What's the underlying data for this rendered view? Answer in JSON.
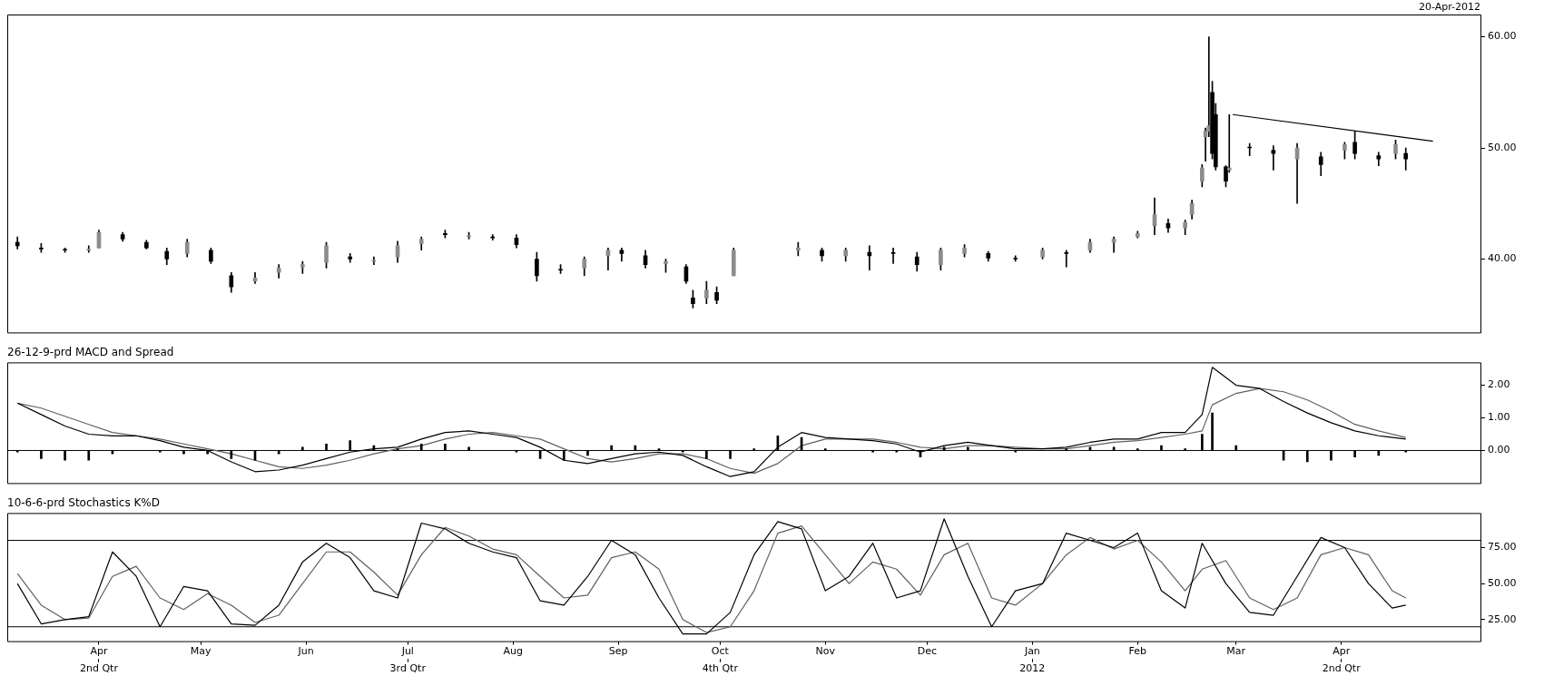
{
  "chart_data": [
    {
      "type": "candlestick",
      "color": "#000000",
      "colors": [
        "#000000",
        "#000000",
        "#000000",
        "#8c8c8c",
        "#8c8c8c",
        "#000000",
        "#000000",
        "#000000",
        "#8c8c8c",
        "#000000",
        "#000000",
        "#8c8c8c",
        "#8c8c8c",
        "#8c8c8c",
        "#8c8c8c",
        "#000000",
        "#8c8c8c",
        "#8c8c8c",
        "#8c8c8c",
        "#000000",
        "#8c8c8c",
        "#000000",
        "#000000",
        "#000000",
        "#000000",
        "#8c8c8c",
        "#8c8c8c",
        "#000000",
        "#000000",
        "#8c8c8c",
        "#000000",
        "#000000",
        "#8c8c8c",
        "#000000",
        "#8c8c8c",
        "#8c8c8c",
        "#000000",
        "#8c8c8c",
        "#000000",
        "#000000",
        "#000000",
        "#8c8c8c",
        "#8c8c8c",
        "#000000",
        "#000000",
        "#8c8c8c",
        "#000000",
        "#8c8c8c",
        "#8c8c8c",
        "#8c8c8c",
        "#8c8c8c",
        "#000000",
        "#8c8c8c",
        "#8c8c8c",
        "#8c8c8c",
        "#8c8c8c",
        "#8c8c8c",
        "#000000",
        "#000000",
        "#000000",
        "#8c8c8c",
        "#000000",
        "#000000",
        "#8c8c8c",
        "#000000",
        "#8c8c8c",
        "#000000",
        "#000000",
        "#8c8c8c",
        "#000000"
      ],
      "annotations": [
        "20-Apr-2012"
      ],
      "tick_labels": "y",
      "xlim": [
        "2011-03-05",
        "2012-05-12"
      ],
      "ylim": [
        33.4,
        62
      ],
      "yticks": [
        {
          "value": 40,
          "label": "40.00"
        },
        {
          "value": 50,
          "label": "50.00"
        },
        {
          "value": 60,
          "label": "60.00"
        }
      ],
      "x": [
        "2011-03-08",
        "2011-03-15",
        "2011-03-22",
        "2011-03-29",
        "2011-04-01",
        "2011-04-08",
        "2011-04-15",
        "2011-04-21",
        "2011-04-27",
        "2011-05-04",
        "2011-05-10",
        "2011-05-17",
        "2011-05-24",
        "2011-05-31",
        "2011-06-07",
        "2011-06-14",
        "2011-06-21",
        "2011-06-28",
        "2011-07-05",
        "2011-07-12",
        "2011-07-19",
        "2011-07-26",
        "2011-08-02",
        "2011-08-08",
        "2011-08-15",
        "2011-08-22",
        "2011-08-29",
        "2011-09-02",
        "2011-09-09",
        "2011-09-15",
        "2011-09-21",
        "2011-09-23",
        "2011-09-27",
        "2011-09-30",
        "2011-10-05",
        "2011-10-24",
        "2011-10-31",
        "2011-11-07",
        "2011-11-14",
        "2011-11-21",
        "2011-11-28",
        "2011-12-05",
        "2011-12-12",
        "2011-12-19",
        "2011-12-27",
        "2012-01-04",
        "2012-01-11",
        "2012-01-18",
        "2012-01-25",
        "2012-02-01",
        "2012-02-06",
        "2012-02-10",
        "2012-02-15",
        "2012-02-17",
        "2012-02-20",
        "2012-02-21",
        "2012-02-22",
        "2012-02-23",
        "2012-02-24",
        "2012-02-27",
        "2012-02-28",
        "2012-03-05",
        "2012-03-12",
        "2012-03-19",
        "2012-03-26",
        "2012-04-02",
        "2012-04-05",
        "2012-04-12",
        "2012-04-17",
        "2012-04-20"
      ],
      "ohlc": [
        [
          41.5,
          42.0,
          40.9,
          41.2
        ],
        [
          41.0,
          41.4,
          40.6,
          40.9
        ],
        [
          40.8,
          41.0,
          40.6,
          40.8
        ],
        [
          40.8,
          41.2,
          40.6,
          40.9
        ],
        [
          41.0,
          42.6,
          41.0,
          42.4
        ],
        [
          42.2,
          42.4,
          41.6,
          41.8
        ],
        [
          41.5,
          41.7,
          40.9,
          41.0
        ],
        [
          40.7,
          41.0,
          39.5,
          40.0
        ],
        [
          40.5,
          41.8,
          40.2,
          41.5
        ],
        [
          40.8,
          41.0,
          39.6,
          39.8
        ],
        [
          38.5,
          38.8,
          37.0,
          37.5
        ],
        [
          38.0,
          38.8,
          37.8,
          38.3
        ],
        [
          38.8,
          39.5,
          38.3,
          39.2
        ],
        [
          39.3,
          39.8,
          38.7,
          39.5
        ],
        [
          39.7,
          41.5,
          39.2,
          41.2
        ],
        [
          40.2,
          40.5,
          39.7,
          40.0
        ],
        [
          39.8,
          40.2,
          39.5,
          39.9
        ],
        [
          40.2,
          41.6,
          39.7,
          41.2
        ],
        [
          41.4,
          42.0,
          40.8,
          41.8
        ],
        [
          42.3,
          42.6,
          41.9,
          42.2
        ],
        [
          42.0,
          42.4,
          41.8,
          42.1
        ],
        [
          42.0,
          42.2,
          41.7,
          41.9
        ],
        [
          41.9,
          42.2,
          41.0,
          41.3
        ],
        [
          40.0,
          40.6,
          38.0,
          38.5
        ],
        [
          39.0,
          39.5,
          38.7,
          39.0
        ],
        [
          39.2,
          40.2,
          38.5,
          40.0
        ],
        [
          40.3,
          41.0,
          39.0,
          40.8
        ],
        [
          40.8,
          41.0,
          39.8,
          40.5
        ],
        [
          40.3,
          40.8,
          39.2,
          39.5
        ],
        [
          39.6,
          40.0,
          38.8,
          39.8
        ],
        [
          39.3,
          39.5,
          37.8,
          38.0
        ],
        [
          36.5,
          37.2,
          35.6,
          36.0
        ],
        [
          36.5,
          38.0,
          36.0,
          37.2
        ],
        [
          37.0,
          37.5,
          36.0,
          36.3
        ],
        [
          38.5,
          41.0,
          38.5,
          40.8
        ],
        [
          40.8,
          41.5,
          40.3,
          41.0
        ],
        [
          40.8,
          41.0,
          39.8,
          40.3
        ],
        [
          40.3,
          41.0,
          39.8,
          40.8
        ],
        [
          40.6,
          41.2,
          39.0,
          40.3
        ],
        [
          40.5,
          41.0,
          39.6,
          40.5
        ],
        [
          40.2,
          40.6,
          38.9,
          39.5
        ],
        [
          39.5,
          41.0,
          39.0,
          40.8
        ],
        [
          40.5,
          41.3,
          40.2,
          41.0
        ],
        [
          40.5,
          40.7,
          39.8,
          40.1
        ],
        [
          40.0,
          40.3,
          39.8,
          40.0
        ],
        [
          40.2,
          41.0,
          40.0,
          40.8
        ],
        [
          40.5,
          40.8,
          39.3,
          40.5
        ],
        [
          40.8,
          41.8,
          40.6,
          41.5
        ],
        [
          41.5,
          42.0,
          40.6,
          41.8
        ],
        [
          42.0,
          42.5,
          41.9,
          42.3
        ],
        [
          43.0,
          45.5,
          42.2,
          44.0
        ],
        [
          43.2,
          43.6,
          42.4,
          42.8
        ],
        [
          42.8,
          43.5,
          42.2,
          43.3
        ],
        [
          44.0,
          45.3,
          43.6,
          45.0
        ],
        [
          47.0,
          48.5,
          46.5,
          48.2
        ],
        [
          51.0,
          51.8,
          48.8,
          51.5
        ],
        [
          51.5,
          60.0,
          51.0,
          52.0
        ],
        [
          55.0,
          56.0,
          49.0,
          49.5
        ],
        [
          53.0,
          54.0,
          48.0,
          48.3
        ],
        [
          48.3,
          48.4,
          46.5,
          47.0
        ],
        [
          48.0,
          53.0,
          47.8,
          48.2
        ],
        [
          50.0,
          50.4,
          49.3,
          50.0
        ],
        [
          49.8,
          50.2,
          48.0,
          49.5
        ],
        [
          49.0,
          50.4,
          45.0,
          50.0
        ],
        [
          49.2,
          49.6,
          47.5,
          48.5
        ],
        [
          49.8,
          50.5,
          49.0,
          50.3
        ],
        [
          50.5,
          51.5,
          49.0,
          49.5
        ],
        [
          49.3,
          49.6,
          48.4,
          49.0
        ],
        [
          49.5,
          50.7,
          49.0,
          50.3
        ],
        [
          49.5,
          50.0,
          48.0,
          49.0
        ]
      ],
      "series": [
        {
          "type": "line",
          "color": "#000000",
          "x": [
            "2012-02-29",
            "2012-04-28"
          ],
          "values": [
            53.0,
            50.6
          ]
        }
      ]
    },
    {
      "type": "line",
      "title": "26-12-9-prd MACD and Spread",
      "tick_labels": "y",
      "xlim": [
        "2011-03-05",
        "2012-05-12"
      ],
      "ylim": [
        -1,
        2.7
      ],
      "yticks": [
        {
          "value": 0,
          "label": "0.00"
        },
        {
          "value": 1,
          "label": "1.00"
        },
        {
          "value": 2,
          "label": "2.00"
        }
      ],
      "ref_lines": [
        {
          "axis": "y",
          "value": 0,
          "color": "#000000"
        }
      ],
      "x": [
        "2011-03-08",
        "2011-03-15",
        "2011-03-22",
        "2011-03-29",
        "2011-04-05",
        "2011-04-12",
        "2011-04-19",
        "2011-04-26",
        "2011-05-03",
        "2011-05-10",
        "2011-05-17",
        "2011-05-24",
        "2011-05-31",
        "2011-06-07",
        "2011-06-14",
        "2011-06-21",
        "2011-06-28",
        "2011-07-05",
        "2011-07-12",
        "2011-07-19",
        "2011-07-26",
        "2011-08-02",
        "2011-08-09",
        "2011-08-16",
        "2011-08-23",
        "2011-08-30",
        "2011-09-06",
        "2011-09-13",
        "2011-09-20",
        "2011-09-27",
        "2011-10-04",
        "2011-10-11",
        "2011-10-18",
        "2011-10-25",
        "2011-11-01",
        "2011-11-08",
        "2011-11-15",
        "2011-11-22",
        "2011-11-29",
        "2011-12-06",
        "2011-12-13",
        "2011-12-20",
        "2011-12-27",
        "2012-01-04",
        "2012-01-11",
        "2012-01-18",
        "2012-01-25",
        "2012-02-01",
        "2012-02-08",
        "2012-02-15",
        "2012-02-20",
        "2012-02-23",
        "2012-03-01",
        "2012-03-08",
        "2012-03-15",
        "2012-03-22",
        "2012-03-29",
        "2012-04-05",
        "2012-04-12",
        "2012-04-20"
      ],
      "series": [
        {
          "color": "#000000",
          "values": [
            1.45,
            1.1,
            0.75,
            0.5,
            0.45,
            0.45,
            0.3,
            0.1,
            0.0,
            -0.35,
            -0.65,
            -0.6,
            -0.45,
            -0.25,
            -0.05,
            0.05,
            0.1,
            0.35,
            0.55,
            0.6,
            0.5,
            0.4,
            0.1,
            -0.3,
            -0.4,
            -0.25,
            -0.1,
            -0.05,
            -0.15,
            -0.5,
            -0.8,
            -0.65,
            0.1,
            0.55,
            0.4,
            0.35,
            0.3,
            0.2,
            -0.05,
            0.15,
            0.25,
            0.15,
            0.05,
            0.05,
            0.1,
            0.25,
            0.35,
            0.35,
            0.55,
            0.55,
            1.1,
            2.55,
            2.0,
            1.9,
            1.5,
            1.15,
            0.85,
            0.6,
            0.45,
            0.35
          ]
        },
        {
          "color": "#606060",
          "values": [
            1.45,
            1.3,
            1.05,
            0.8,
            0.55,
            0.45,
            0.35,
            0.2,
            0.05,
            -0.1,
            -0.3,
            -0.5,
            -0.55,
            -0.45,
            -0.3,
            -0.1,
            0.05,
            0.15,
            0.35,
            0.5,
            0.55,
            0.45,
            0.35,
            0.05,
            -0.25,
            -0.35,
            -0.25,
            -0.1,
            -0.1,
            -0.25,
            -0.55,
            -0.7,
            -0.4,
            0.15,
            0.35,
            0.35,
            0.35,
            0.25,
            0.1,
            0.05,
            0.15,
            0.15,
            0.1,
            0.05,
            0.05,
            0.15,
            0.25,
            0.3,
            0.4,
            0.5,
            0.6,
            1.4,
            1.75,
            1.9,
            1.8,
            1.55,
            1.2,
            0.8,
            0.6,
            0.4
          ]
        },
        {
          "type": "bar",
          "color": "#000000",
          "values": [
            -0.05,
            -0.25,
            -0.3,
            -0.3,
            -0.1,
            0.0,
            -0.05,
            -0.1,
            -0.1,
            -0.25,
            -0.3,
            -0.1,
            0.1,
            0.2,
            0.3,
            0.15,
            0.05,
            0.2,
            0.2,
            0.1,
            0.0,
            -0.05,
            -0.25,
            -0.3,
            -0.15,
            0.15,
            0.15,
            0.05,
            -0.05,
            -0.25,
            -0.25,
            0.05,
            0.45,
            0.4,
            0.05,
            0.0,
            -0.05,
            -0.05,
            -0.2,
            0.1,
            0.1,
            0.0,
            -0.05,
            0.0,
            0.05,
            0.1,
            0.1,
            0.05,
            0.15,
            0.05,
            0.5,
            1.15,
            0.15,
            0.0,
            -0.3,
            -0.35,
            -0.3,
            -0.2,
            -0.15,
            -0.05
          ]
        }
      ]
    },
    {
      "type": "line",
      "title": "10-6-6-prd Stochastics K%D",
      "xlim": [
        "2011-03-05",
        "2012-05-12"
      ],
      "ylim": [
        10,
        99
      ],
      "yticks": [
        {
          "value": 25,
          "label": "25.00"
        },
        {
          "value": 50,
          "label": "50.00"
        },
        {
          "value": 75,
          "label": "75.00"
        }
      ],
      "ref_lines": [
        {
          "axis": "y",
          "value": 80,
          "color": "#000000"
        },
        {
          "axis": "y",
          "value": 20,
          "color": "#000000"
        }
      ],
      "xticks": [
        {
          "value": "2011-04-01",
          "label": "Apr"
        },
        {
          "value": "2011-05-01",
          "label": "May"
        },
        {
          "value": "2011-06-01",
          "label": "Jun"
        },
        {
          "value": "2011-07-01",
          "label": "Jul"
        },
        {
          "value": "2011-08-01",
          "label": "Aug"
        },
        {
          "value": "2011-09-01",
          "label": "Sep"
        },
        {
          "value": "2011-10-01",
          "label": "Oct"
        },
        {
          "value": "2011-11-01",
          "label": "Nov"
        },
        {
          "value": "2011-12-01",
          "label": "Dec"
        },
        {
          "value": "2012-01-01",
          "label": "Jan"
        },
        {
          "value": "2012-02-01",
          "label": "Feb"
        },
        {
          "value": "2012-03-01",
          "label": "Mar"
        },
        {
          "value": "2012-04-01",
          "label": "Apr"
        }
      ],
      "x2lim": [
        "2011-03-05",
        "2012-05-12"
      ],
      "x2ticks": [
        {
          "value": "2011-04-01",
          "label": "2nd Qtr"
        },
        {
          "value": "2011-07-01",
          "label": "3rd Qtr"
        },
        {
          "value": "2011-10-01",
          "label": "4th Qtr"
        },
        {
          "value": "2012-01-01",
          "label": "2012"
        },
        {
          "value": "2012-04-01",
          "label": "2nd Qtr"
        }
      ],
      "x": [
        "2011-03-08",
        "2011-03-15",
        "2011-03-22",
        "2011-03-29",
        "2011-04-05",
        "2011-04-12",
        "2011-04-19",
        "2011-04-26",
        "2011-05-03",
        "2011-05-10",
        "2011-05-17",
        "2011-05-24",
        "2011-05-31",
        "2011-06-07",
        "2011-06-14",
        "2011-06-21",
        "2011-06-28",
        "2011-07-05",
        "2011-07-12",
        "2011-07-19",
        "2011-07-26",
        "2011-08-02",
        "2011-08-09",
        "2011-08-16",
        "2011-08-23",
        "2011-08-30",
        "2011-09-06",
        "2011-09-13",
        "2011-09-20",
        "2011-09-27",
        "2011-10-04",
        "2011-10-11",
        "2011-10-18",
        "2011-10-25",
        "2011-11-01",
        "2011-11-08",
        "2011-11-15",
        "2011-11-22",
        "2011-11-29",
        "2011-12-06",
        "2011-12-13",
        "2011-12-20",
        "2011-12-27",
        "2012-01-04",
        "2012-01-11",
        "2012-01-18",
        "2012-01-25",
        "2012-02-01",
        "2012-02-08",
        "2012-02-15",
        "2012-02-20",
        "2012-02-27",
        "2012-03-05",
        "2012-03-12",
        "2012-03-19",
        "2012-03-26",
        "2012-04-02",
        "2012-04-09",
        "2012-04-16",
        "2012-04-20"
      ],
      "series": [
        {
          "color": "#000000",
          "values": [
            50,
            22,
            25,
            27,
            72,
            55,
            20,
            48,
            45,
            22,
            21,
            35,
            65,
            78,
            68,
            45,
            40,
            92,
            88,
            78,
            72,
            68,
            38,
            35,
            55,
            80,
            70,
            40,
            15,
            15,
            30,
            70,
            93,
            88,
            45,
            55,
            78,
            40,
            45,
            95,
            55,
            20,
            45,
            50,
            85,
            80,
            75,
            85,
            45,
            33,
            78,
            50,
            30,
            28,
            55,
            82,
            75,
            50,
            33,
            35
          ]
        },
        {
          "color": "#606060",
          "values": [
            57,
            35,
            25,
            26,
            55,
            62,
            40,
            32,
            43,
            35,
            23,
            28,
            50,
            72,
            72,
            58,
            42,
            70,
            89,
            83,
            74,
            70,
            55,
            40,
            42,
            68,
            72,
            60,
            25,
            16,
            20,
            45,
            85,
            90,
            70,
            50,
            65,
            60,
            42,
            70,
            78,
            40,
            35,
            50,
            70,
            82,
            74,
            80,
            65,
            45,
            60,
            66,
            40,
            32,
            40,
            70,
            75,
            70,
            45,
            40
          ]
        }
      ]
    }
  ]
}
